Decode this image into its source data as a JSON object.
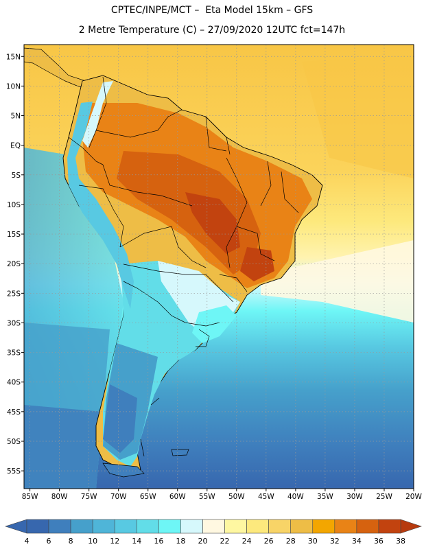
{
  "title": {
    "line1": "CPTEC/INPE/MCT –  Eta Model 15km – GFS",
    "line2": "2 Metre Temperature (C) – 27/09/2020 12UTC fct=147h"
  },
  "map": {
    "lat_labels": [
      "15N",
      "10N",
      "5N",
      "EQ",
      "5S",
      "10S",
      "15S",
      "20S",
      "25S",
      "30S",
      "35S",
      "40S",
      "45S",
      "50S",
      "55S"
    ],
    "lon_labels": [
      "85W",
      "80W",
      "75W",
      "70W",
      "65W",
      "60W",
      "55W",
      "50W",
      "45W",
      "40W",
      "35W",
      "30W",
      "25W",
      "20W"
    ],
    "lat_range": [
      17,
      -58
    ],
    "lon_range": [
      -86,
      -20
    ]
  },
  "colorbar": {
    "labels": [
      "4",
      "6",
      "8",
      "10",
      "12",
      "14",
      "16",
      "18",
      "20",
      "22",
      "24",
      "26",
      "28",
      "30",
      "32",
      "34",
      "36",
      "38"
    ],
    "colors": [
      "#3767ae",
      "#3f7fbd",
      "#46a0cb",
      "#4fb5d8",
      "#58c9e2",
      "#62dde8",
      "#6ef6f6",
      "#d6f8fc",
      "#fff8e1",
      "#fef7a1",
      "#fde97d",
      "#f8d467",
      "#eebd46",
      "#f3a600",
      "#e98316",
      "#d6620f",
      "#c2430f"
    ],
    "low_color": "#3767ae",
    "high_color": "#b73a0e"
  },
  "colors": {
    "ocean_warm": "#fbd35a",
    "ocean_warm2": "#fde97d",
    "ocean_cool": "#6ef6f6",
    "ocean_cold": "#4fb5d8",
    "ocean_deep": "#3f7fbd",
    "land_hot": "#d6620f",
    "land_warm": "#eebd46"
  }
}
